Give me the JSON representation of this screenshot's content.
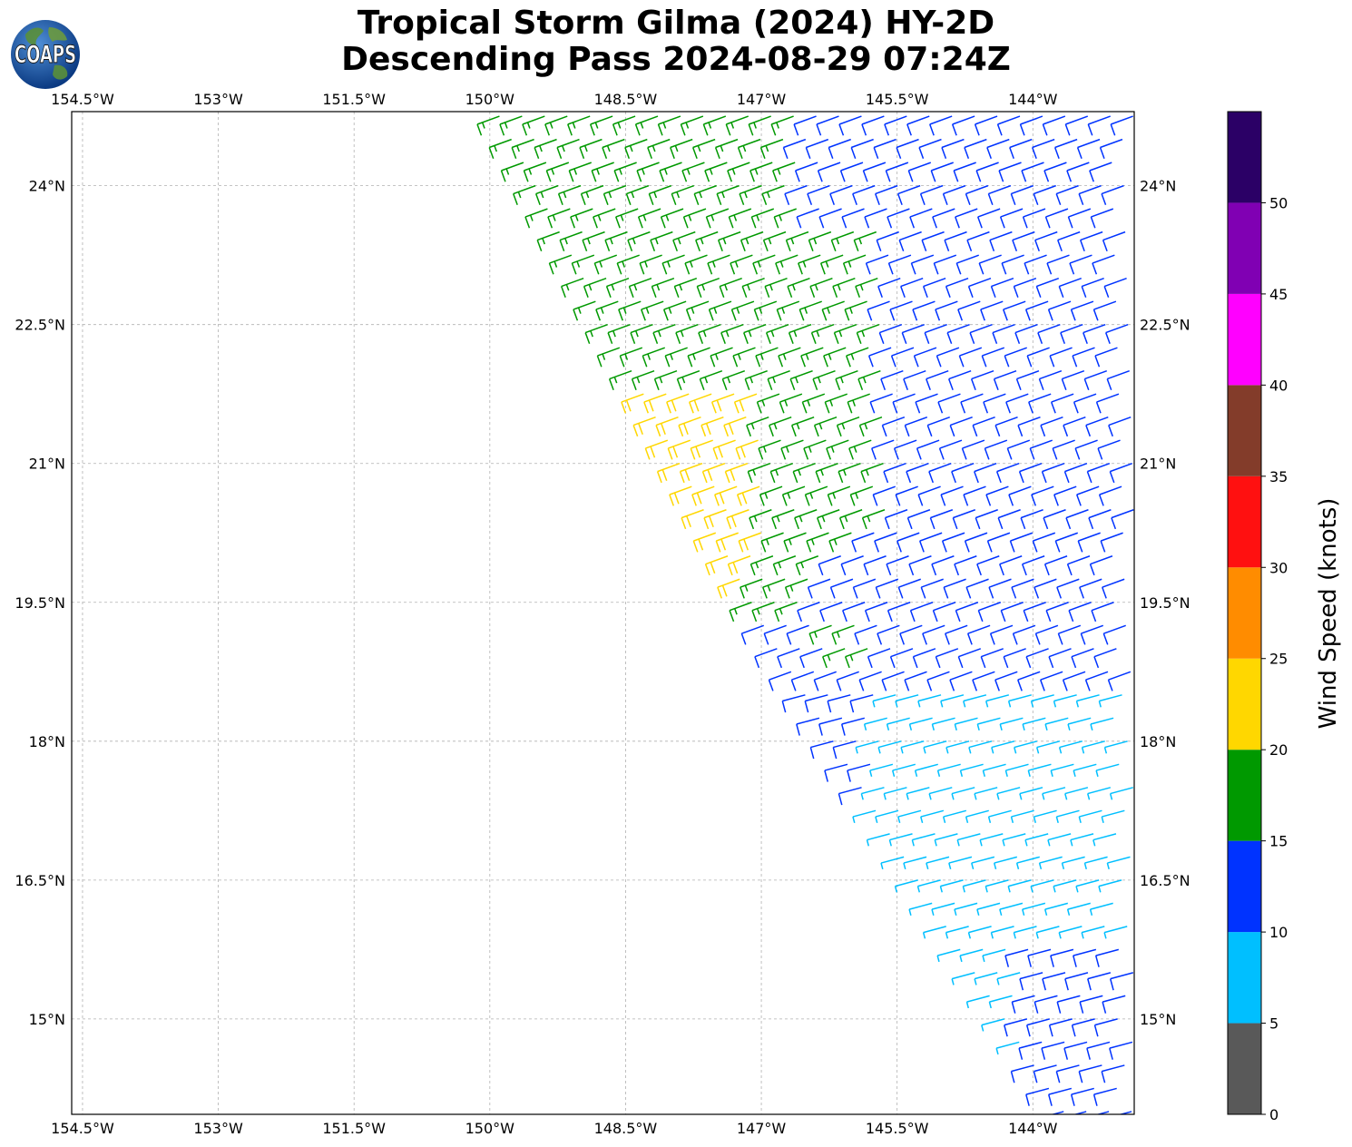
{
  "title": {
    "line1": "Tropical Storm Gilma (2024) HY-2D",
    "line2": "Descending Pass 2024-08-29 07:24Z"
  },
  "logo": {
    "text": "COAPS"
  },
  "map": {
    "lon_range": [
      -154.62,
      -142.88
    ],
    "lat_range": [
      13.97,
      24.8
    ],
    "lon_ticks": [
      {
        "value": -154.5,
        "label": "154.5°W"
      },
      {
        "value": -153.0,
        "label": "153°W"
      },
      {
        "value": -151.5,
        "label": "151.5°W"
      },
      {
        "value": -150.0,
        "label": "150°W"
      },
      {
        "value": -148.5,
        "label": "148.5°W"
      },
      {
        "value": -147.0,
        "label": "147°W"
      },
      {
        "value": -145.5,
        "label": "145.5°W"
      },
      {
        "value": -144.0,
        "label": "144°W"
      }
    ],
    "lat_ticks": [
      {
        "value": 24.0,
        "label": "24°N"
      },
      {
        "value": 22.5,
        "label": "22.5°N"
      },
      {
        "value": 21.0,
        "label": "21°N"
      },
      {
        "value": 19.5,
        "label": "19.5°N"
      },
      {
        "value": 18.0,
        "label": "18°N"
      },
      {
        "value": 16.5,
        "label": "16.5°N"
      },
      {
        "value": 15.0,
        "label": "15°N"
      }
    ],
    "gridlines": true
  },
  "colorbar": {
    "label": "Wind Speed (knots)",
    "bins": [
      {
        "min": 0,
        "max": 5,
        "color": "#595959"
      },
      {
        "min": 5,
        "max": 10,
        "color": "#00bfff"
      },
      {
        "min": 10,
        "max": 15,
        "color": "#0033ff"
      },
      {
        "min": 15,
        "max": 20,
        "color": "#009900"
      },
      {
        "min": 20,
        "max": 25,
        "color": "#ffd700"
      },
      {
        "min": 25,
        "max": 30,
        "color": "#ff8c00"
      },
      {
        "min": 30,
        "max": 35,
        "color": "#ff1010"
      },
      {
        "min": 35,
        "max": 40,
        "color": "#833c2a"
      },
      {
        "min": 40,
        "max": 45,
        "color": "#ff00ff"
      },
      {
        "min": 45,
        "max": 50,
        "color": "#8000b3"
      },
      {
        "min": 50,
        "max": 55,
        "color": "#2b0066"
      }
    ],
    "tick_labels": [
      "0",
      "5",
      "10",
      "15",
      "20",
      "25",
      "30",
      "35",
      "40",
      "45",
      "50"
    ]
  },
  "wind_field": {
    "swath_west_edge": [
      [
        -149.98,
        24.8
      ],
      [
        -146.98,
        19.15
      ],
      [
        -144.8,
        15.65
      ],
      [
        -143.7,
        13.97
      ]
    ],
    "swath_east_edge": -142.88,
    "grid_spacing_deg": 0.25,
    "regions": [
      {
        "speed_knots": 22,
        "direction": "ENE winds, 20-25 kt band near swath west edge",
        "lon": [
          -149.0,
          -147.0
        ],
        "lat": [
          19.75,
          21.75
        ]
      },
      {
        "speed_knots": 17,
        "direction": "ENE",
        "lat": [
          19.0,
          24.8
        ]
      },
      {
        "speed_knots": 12,
        "direction": "ENE",
        "lat": [
          13.97,
          24.8
        ]
      },
      {
        "speed_knots": 8,
        "direction": "E",
        "lat": [
          14.2,
          18.6
        ]
      }
    ]
  }
}
